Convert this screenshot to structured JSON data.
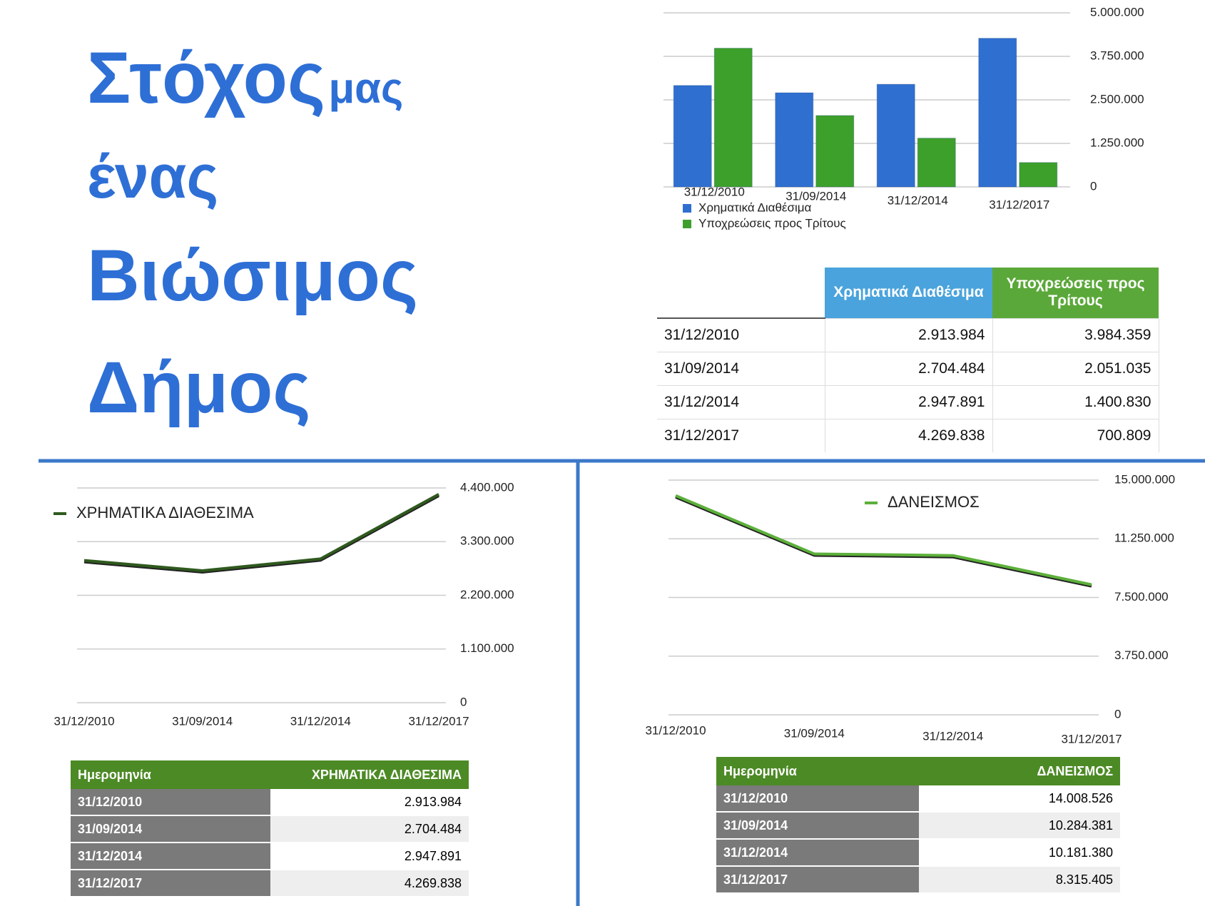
{
  "title": {
    "parts": [
      "Στόχος",
      "μας",
      "ένας",
      "Βιώσιμος",
      "Δήμος"
    ]
  },
  "chart_data": [
    {
      "type": "bar",
      "categories": [
        "31/12/2010",
        "31/09/2014",
        "31/12/2014",
        "31/12/2017"
      ],
      "series": [
        {
          "name": "Χρηματικά Διαθέσιμα",
          "color": "#2f6fcf",
          "values": [
            2913984,
            2704484,
            2947891,
            4269838
          ]
        },
        {
          "name": "Υποχρεώσεις προς Τρίτους",
          "color": "#3da02a",
          "values": [
            3984359,
            2051035,
            1400830,
            700809
          ]
        }
      ],
      "ylim": [
        0,
        5000000
      ],
      "yticks": [
        0,
        {
          "value": 1250000,
          "label": "1.250.000"
        },
        {
          "value": 2500000,
          "label": "2.500.000"
        },
        {
          "value": 3750000,
          "label": "3.750.000"
        },
        {
          "value": 5000000,
          "label": "5.000.000"
        }
      ],
      "grid": true,
      "legend": "bottom-left"
    },
    {
      "type": "line",
      "categories": [
        "31/12/2010",
        "31/09/2014",
        "31/12/2014",
        "31/12/2017"
      ],
      "series": [
        {
          "name": "ΧΡΗΜΑΤΙΚΑ ΔΙΑΘΕΣΙΜΑ",
          "color": "#2f5a1e",
          "values": [
            2913984,
            2704484,
            2947891,
            4269838
          ]
        }
      ],
      "ylim": [
        0,
        4400000
      ],
      "yticks": [
        0,
        {
          "value": 1100000,
          "label": "1.100.000"
        },
        {
          "value": 2200000,
          "label": "2.200.000"
        },
        {
          "value": 3300000,
          "label": "3.300.000"
        },
        {
          "value": 4400000,
          "label": "4.400.000"
        }
      ],
      "grid": true,
      "legend": "top-left"
    },
    {
      "type": "line",
      "categories": [
        "31/12/2010",
        "31/09/2014",
        "31/12/2014",
        "31/12/2017"
      ],
      "series": [
        {
          "name": "ΔΑΝΕΙΣΜΟΣ",
          "color": "#5cb03a",
          "values": [
            14008526,
            10284381,
            10181380,
            8315405
          ]
        }
      ],
      "ylim": [
        0,
        15000000
      ],
      "yticks": [
        0,
        {
          "value": 3750000,
          "label": "3.750.000"
        },
        {
          "value": 7500000,
          "label": "7.500.000"
        },
        {
          "value": 11250000,
          "label": "11.250.000"
        },
        {
          "value": 15000000,
          "label": "15.000.000"
        }
      ],
      "grid": true,
      "legend": "top-center"
    }
  ],
  "tables": [
    {
      "header": [
        "Χρηματικά Διαθέσιμα",
        "Υποχρεώσεις προς Τρίτους"
      ],
      "rows": [
        [
          "31/12/2010",
          "2.913.984",
          "3.984.359"
        ],
        [
          "31/09/2014",
          "2.704.484",
          "2.051.035"
        ],
        [
          "31/12/2014",
          "2.947.891",
          "1.400.830"
        ],
        [
          "31/12/2017",
          "4.269.838",
          "700.809"
        ]
      ]
    },
    {
      "header": [
        "Ημερομηνία",
        "ΧΡΗΜΑΤΙΚΑ ΔΙΑΘΕΣΙΜΑ"
      ],
      "rows": [
        [
          "31/12/2010",
          "2.913.984"
        ],
        [
          "31/09/2014",
          "2.704.484"
        ],
        [
          "31/12/2014",
          "2.947.891"
        ],
        [
          "31/12/2017",
          "4.269.838"
        ]
      ]
    },
    {
      "header": [
        "Ημερομηνία",
        "ΔΑΝΕΙΣΜΟΣ"
      ],
      "rows": [
        [
          "31/12/2010",
          "14.008.526"
        ],
        [
          "31/09/2014",
          "10.284.381"
        ],
        [
          "31/12/2014",
          "10.181.380"
        ],
        [
          "31/12/2017",
          "8.315.405"
        ]
      ]
    }
  ]
}
